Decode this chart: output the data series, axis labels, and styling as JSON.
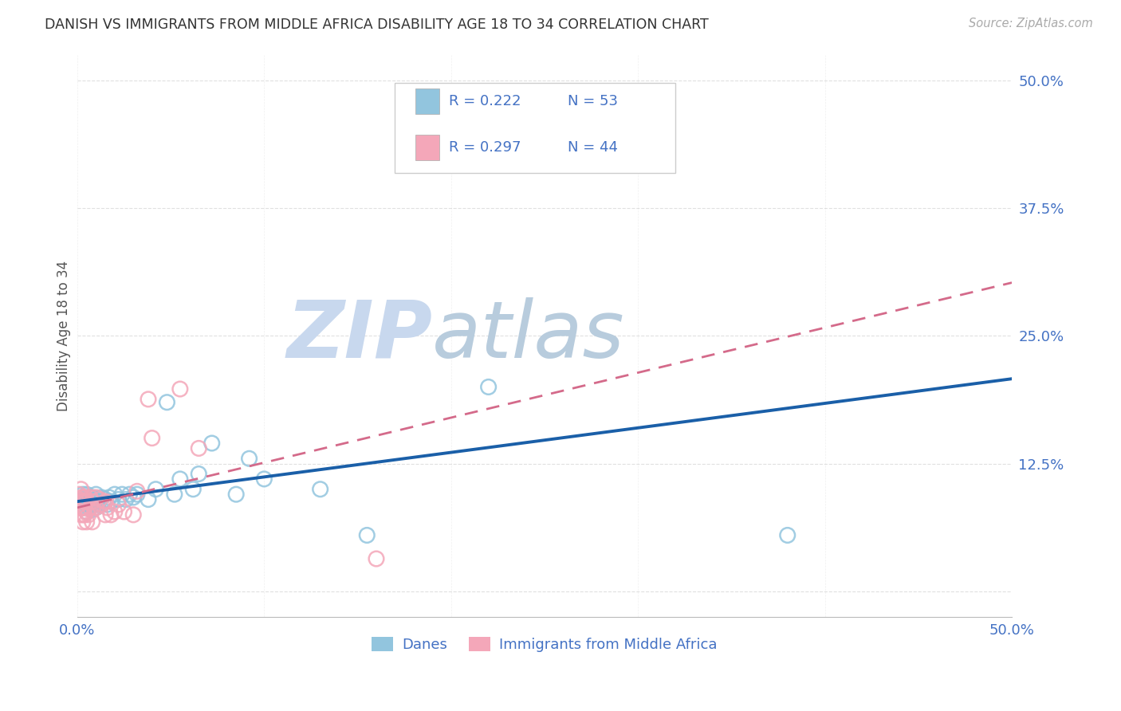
{
  "title": "DANISH VS IMMIGRANTS FROM MIDDLE AFRICA DISABILITY AGE 18 TO 34 CORRELATION CHART",
  "source_text": "Source: ZipAtlas.com",
  "ylabel": "Disability Age 18 to 34",
  "xlim": [
    0.0,
    0.5
  ],
  "ylim": [
    -0.025,
    0.525
  ],
  "ytick_positions": [
    0.0,
    0.125,
    0.25,
    0.375,
    0.5
  ],
  "ytick_labels": [
    "",
    "12.5%",
    "25.0%",
    "37.5%",
    "50.0%"
  ],
  "xtick_positions": [
    0.0,
    0.1,
    0.2,
    0.3,
    0.4,
    0.5
  ],
  "xtick_labels": [
    "0.0%",
    "",
    "",
    "",
    "",
    "50.0%"
  ],
  "blue_scatter_color": "#92c5de",
  "pink_scatter_color": "#f4a7b9",
  "blue_line_color": "#1a5fa8",
  "pink_line_color": "#d46a8a",
  "tick_label_color": "#4472c4",
  "watermark_color": "#ccd9ee",
  "grid_color": "#cccccc",
  "danes_x": [
    0.002,
    0.003,
    0.003,
    0.004,
    0.004,
    0.004,
    0.005,
    0.005,
    0.005,
    0.005,
    0.006,
    0.006,
    0.006,
    0.007,
    0.007,
    0.008,
    0.008,
    0.008,
    0.009,
    0.009,
    0.01,
    0.01,
    0.01,
    0.011,
    0.012,
    0.013,
    0.014,
    0.015,
    0.016,
    0.017,
    0.018,
    0.02,
    0.022,
    0.024,
    0.026,
    0.028,
    0.03,
    0.032,
    0.038,
    0.042,
    0.048,
    0.052,
    0.055,
    0.062,
    0.065,
    0.072,
    0.085,
    0.092,
    0.1,
    0.13,
    0.155,
    0.22,
    0.38
  ],
  "danes_y": [
    0.085,
    0.09,
    0.095,
    0.082,
    0.088,
    0.092,
    0.078,
    0.085,
    0.09,
    0.095,
    0.082,
    0.088,
    0.09,
    0.085,
    0.092,
    0.08,
    0.088,
    0.092,
    0.085,
    0.09,
    0.082,
    0.088,
    0.095,
    0.085,
    0.09,
    0.092,
    0.088,
    0.09,
    0.085,
    0.092,
    0.088,
    0.095,
    0.09,
    0.095,
    0.09,
    0.095,
    0.092,
    0.095,
    0.09,
    0.1,
    0.185,
    0.095,
    0.11,
    0.1,
    0.115,
    0.145,
    0.095,
    0.13,
    0.11,
    0.1,
    0.055,
    0.2,
    0.055
  ],
  "immigrants_x": [
    0.001,
    0.001,
    0.001,
    0.001,
    0.002,
    0.002,
    0.002,
    0.002,
    0.002,
    0.003,
    0.003,
    0.003,
    0.003,
    0.003,
    0.004,
    0.004,
    0.004,
    0.004,
    0.005,
    0.005,
    0.005,
    0.006,
    0.007,
    0.007,
    0.008,
    0.008,
    0.01,
    0.01,
    0.012,
    0.013,
    0.015,
    0.015,
    0.016,
    0.018,
    0.02,
    0.022,
    0.025,
    0.03,
    0.032,
    0.038,
    0.04,
    0.055,
    0.065,
    0.16
  ],
  "immigrants_y": [
    0.085,
    0.09,
    0.09,
    0.095,
    0.075,
    0.082,
    0.088,
    0.092,
    0.1,
    0.068,
    0.075,
    0.082,
    0.088,
    0.092,
    0.075,
    0.082,
    0.088,
    0.092,
    0.068,
    0.078,
    0.088,
    0.075,
    0.082,
    0.092,
    0.068,
    0.088,
    0.082,
    0.092,
    0.09,
    0.085,
    0.075,
    0.088,
    0.082,
    0.075,
    0.078,
    0.085,
    0.078,
    0.075,
    0.098,
    0.188,
    0.15,
    0.198,
    0.14,
    0.032
  ],
  "blue_intercept": 0.088,
  "blue_slope": 0.24,
  "pink_intercept": 0.082,
  "pink_slope": 0.44
}
